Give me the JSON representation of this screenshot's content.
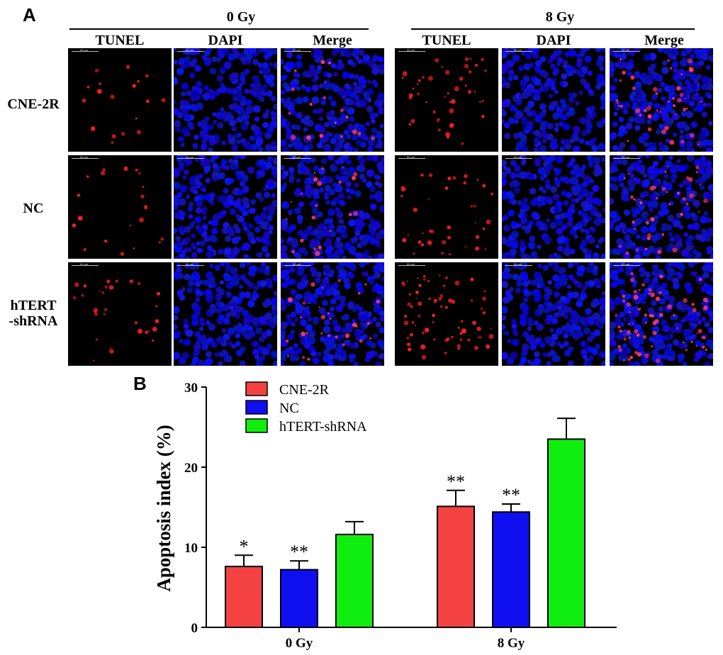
{
  "panel_a": {
    "letter": "A",
    "groups": [
      {
        "title": "0 Gy",
        "columns": [
          "TUNEL",
          "DAPI",
          "Merge"
        ]
      },
      {
        "title": "8 Gy",
        "columns": [
          "TUNEL",
          "DAPI",
          "Merge"
        ]
      }
    ],
    "rows": [
      {
        "label_lines": [
          "CNE-2R"
        ]
      },
      {
        "label_lines": [
          "NC"
        ]
      },
      {
        "label_lines": [
          "hTERT",
          "-shRNA"
        ]
      }
    ],
    "scale_bar_text": "50 μm",
    "colors": {
      "tunel": "#ff2020",
      "dapi": "#1a1ad8",
      "background": "#000000"
    }
  },
  "panel_b": {
    "letter": "B"
  },
  "chart_data": {
    "type": "bar",
    "categories": [
      "0 Gy",
      "8 Gy"
    ],
    "ylabel": "Apoptosis index (%)",
    "xlabel": "",
    "ylim": [
      0,
      30
    ],
    "yticks": [
      0,
      10,
      20,
      30
    ],
    "series": [
      {
        "name": "CNE-2R",
        "color": "#f44242",
        "values": [
          7.6,
          15.1
        ],
        "errors": [
          1.4,
          2.0
        ],
        "annotations": [
          "*",
          "**"
        ]
      },
      {
        "name": "NC",
        "color": "#0f0ff0",
        "values": [
          7.2,
          14.4
        ],
        "errors": [
          1.1,
          1.0
        ],
        "annotations": [
          "**",
          "**"
        ]
      },
      {
        "name": "hTERT-shRNA",
        "color": "#10ee10",
        "values": [
          11.6,
          23.5
        ],
        "errors": [
          1.6,
          2.6
        ],
        "annotations": [
          "",
          ""
        ]
      }
    ],
    "legend_position": "top-left"
  }
}
